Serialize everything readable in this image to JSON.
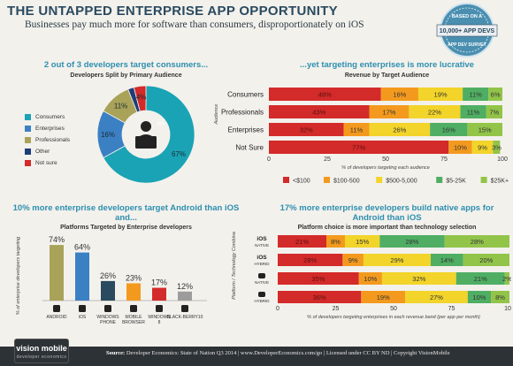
{
  "header": {
    "title": "THE UNTAPPED ENTERPRISE APP OPPORTUNITY",
    "subtitle": "Businesses pay much more for software than consumers, disproportionately on iOS"
  },
  "badge": {
    "top": "BASED ON A",
    "middle": "10,000+ APP DEVS",
    "bottom": "APP DEV SURVEY"
  },
  "colors": {
    "teal": "#1aa3b5",
    "blue": "#3b80c3",
    "olive": "#a9a35a",
    "navy": "#1e3c78",
    "red": "#d32a2a",
    "orange": "#f39a1e",
    "yellow": "#f2d42a",
    "green": "#4fae63",
    "lime": "#92c44a"
  },
  "footer": {
    "source_label": "Source:",
    "source_text": "Developer Economics: State of Nation Q3 2014 | www.DeveloperEconomics.com/go  |   Licensed under CC BY ND  |  Copyright VisionMobile",
    "logo_main": "vision mobile",
    "logo_tag": "developer economics"
  },
  "chart_data": [
    {
      "type": "pie",
      "title": "2 out of 3 developers target consumers...",
      "subtitle": "Developers Split by Primary Audience",
      "slices": [
        {
          "label": "Consumers",
          "value": 67,
          "color": "#1aa3b5",
          "shown": "67%"
        },
        {
          "label": "Enterprises",
          "value": 16,
          "color": "#3b80c3",
          "shown": "16%"
        },
        {
          "label": "Professionals",
          "value": 11,
          "color": "#a9a35a",
          "shown": "11%"
        },
        {
          "label": "Other",
          "value": 2,
          "color": "#1e3c78",
          "shown": ""
        },
        {
          "label": "Not sure",
          "value": 4,
          "color": "#d32a2a",
          "shown": "4%"
        }
      ]
    },
    {
      "type": "bar",
      "orientation": "horizontal",
      "stacked": true,
      "title": "...yet targeting enterprises is more lucrative",
      "subtitle": "Revenue by Target Audience",
      "ylabel": "Audience",
      "xlabel": "% of developers targeting each audience",
      "xlim": [
        0,
        100
      ],
      "xticks": [
        0,
        25,
        50,
        75,
        100
      ],
      "categories": [
        "Consumers",
        "Professionals",
        "Enterprises",
        "Not Sure"
      ],
      "series": [
        {
          "name": "<$100",
          "color": "#d32a2a",
          "values": [
            48,
            43,
            32,
            77
          ]
        },
        {
          "name": "$100-500",
          "color": "#f39a1e",
          "values": [
            16,
            17,
            11,
            10
          ]
        },
        {
          "name": "$500-5,000",
          "color": "#f2d42a",
          "values": [
            19,
            22,
            26,
            9
          ]
        },
        {
          "name": "$5-25K",
          "color": "#4fae63",
          "values": [
            11,
            11,
            16,
            0
          ]
        },
        {
          "name": "$25K+",
          "color": "#92c44a",
          "values": [
            6,
            7,
            15,
            3
          ]
        }
      ],
      "labels": [
        [
          "48%",
          "16%",
          "19%",
          "11%",
          "6%"
        ],
        [
          "43%",
          "17%",
          "22%",
          "11%",
          "7%"
        ],
        [
          "32%",
          "11%",
          "26%",
          "16%",
          "15%"
        ],
        [
          "77%",
          "10%",
          "9%",
          "",
          "3%"
        ]
      ]
    },
    {
      "type": "bar",
      "title": "10% more enterprise developers target Android than iOS and...",
      "subtitle": "Platforms Targeted by Enterprise developers",
      "ylabel": "% of enterprise developers targeting",
      "categories": [
        "ANDROID",
        "iOS",
        "WINDOWS PHONE",
        "MOBILE BROWSER",
        "WINDOWS 8",
        "BLACK-BERRY10"
      ],
      "values": [
        74,
        64,
        26,
        23,
        17,
        12
      ],
      "value_labels": [
        "74%",
        "64%",
        "26%",
        "23%",
        "17%",
        "12%"
      ],
      "colors": [
        "#a9a35a",
        "#3b80c3",
        "#2a4a5f",
        "#f39a1e",
        "#d32a2a",
        "#9c9c9c"
      ],
      "ylim": [
        0,
        80
      ]
    },
    {
      "type": "bar",
      "orientation": "horizontal",
      "stacked": true,
      "title": "17% more enterprise developers build native apps for Android than iOS",
      "subtitle": "Platform choice is more important than technology selection",
      "ylabel": "Platform / Technology Combination",
      "xlabel": "% of developers targeting enterprises in each revenue band (per app per month)",
      "xlim": [
        0,
        100
      ],
      "xticks": [
        0,
        25,
        50,
        75,
        100
      ],
      "categories": [
        {
          "platform": "iOS",
          "tech": "NATIVE"
        },
        {
          "platform": "iOS",
          "tech": "HYBRID"
        },
        {
          "platform": "",
          "tech": "NATIVE"
        },
        {
          "platform": "",
          "tech": "HYBRID"
        }
      ],
      "series": [
        {
          "name": "<$100",
          "color": "#d32a2a",
          "values": [
            21,
            28,
            35,
            36
          ]
        },
        {
          "name": "$100-500",
          "color": "#f39a1e",
          "values": [
            8,
            9,
            10,
            19
          ]
        },
        {
          "name": "$500-5,000",
          "color": "#f2d42a",
          "values": [
            15,
            29,
            32,
            27
          ]
        },
        {
          "name": "$5-25K",
          "color": "#4fae63",
          "values": [
            28,
            14,
            21,
            10
          ]
        },
        {
          "name": "$25K+",
          "color": "#92c44a",
          "values": [
            28,
            20,
            2,
            8
          ]
        }
      ],
      "labels": [
        [
          "21%",
          "8%",
          "15%",
          "28%",
          "28%"
        ],
        [
          "28%",
          "9%",
          "29%",
          "14%",
          "20%"
        ],
        [
          "35%",
          "10%",
          "32%",
          "21%",
          "2%"
        ],
        [
          "36%",
          "19%",
          "27%",
          "10%",
          "8%"
        ]
      ]
    }
  ]
}
